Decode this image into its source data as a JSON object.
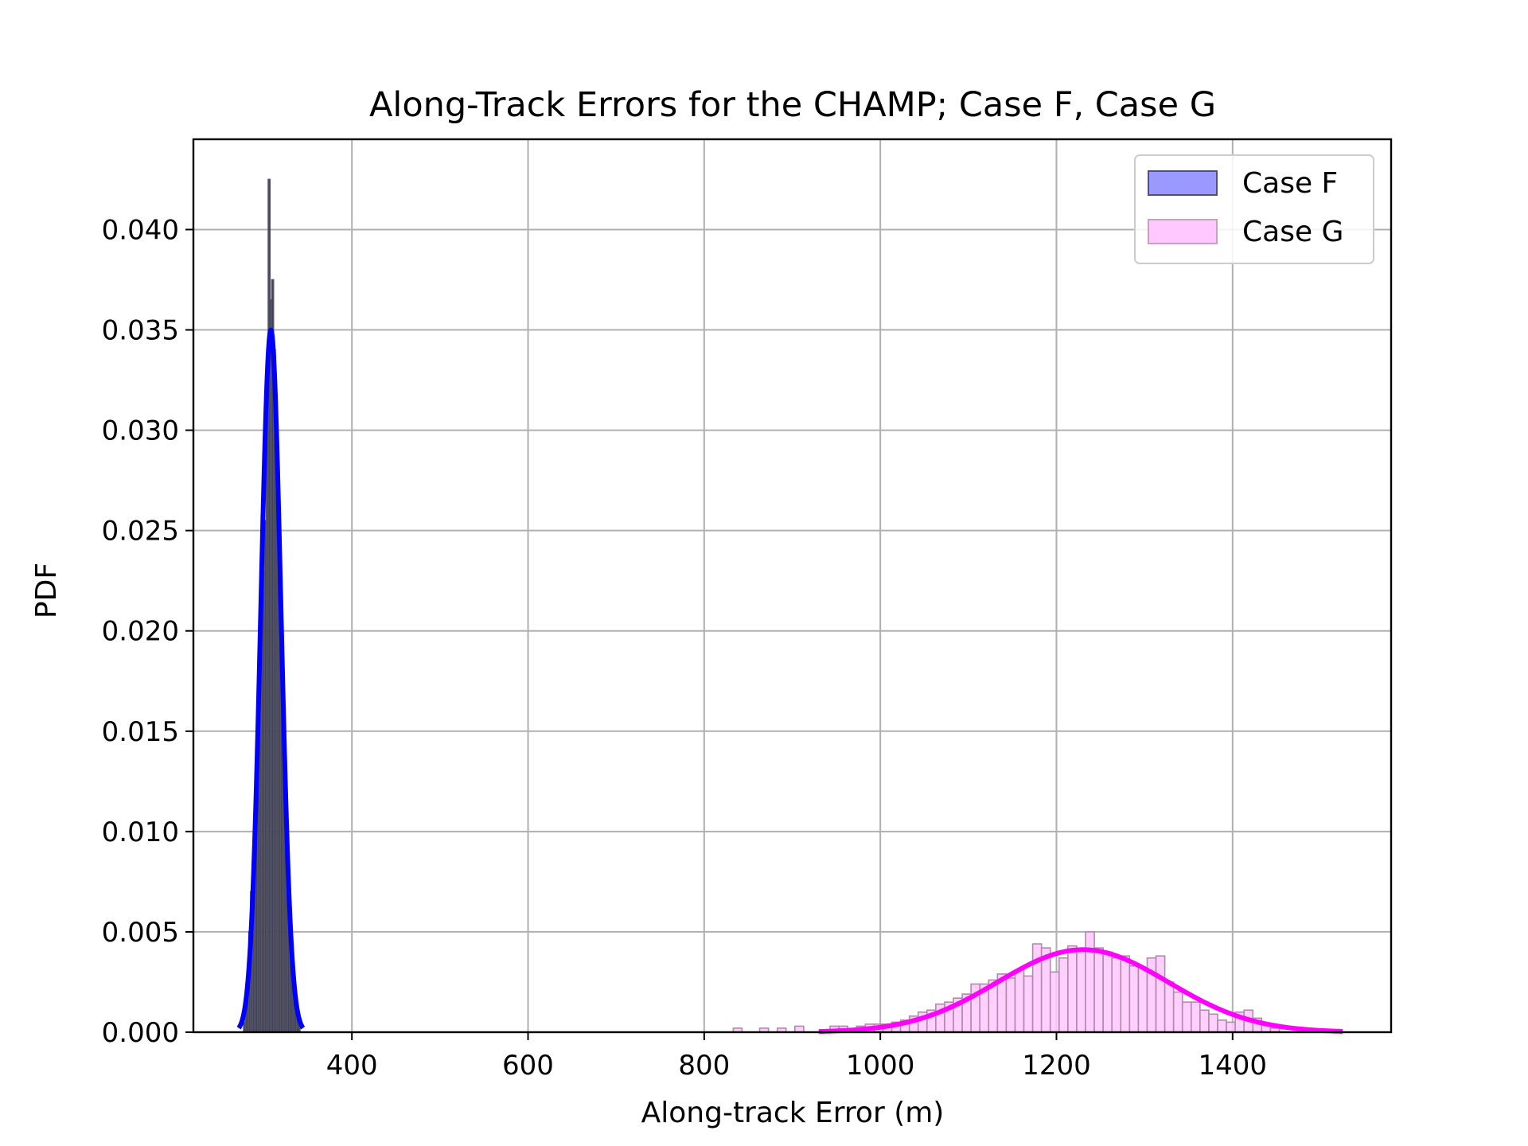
{
  "chart_data": {
    "type": "histogram",
    "title": "Along-Track Errors for the CHAMP; Case F, Case G",
    "xlabel": "Along-track Error (m)",
    "ylabel": "PDF",
    "xlim": [
      220,
      1580
    ],
    "ylim": [
      0,
      0.0445
    ],
    "xticks": [
      400,
      600,
      800,
      1000,
      1200,
      1400
    ],
    "xtick_labels": [
      "400",
      "600",
      "800",
      "1000",
      "1200",
      "1400"
    ],
    "yticks": [
      0,
      0.005,
      0.01,
      0.015,
      0.02,
      0.025,
      0.03,
      0.035,
      0.04
    ],
    "ytick_labels": [
      "0.000",
      "0.005",
      "0.010",
      "0.015",
      "0.020",
      "0.025",
      "0.030",
      "0.035",
      "0.040"
    ],
    "grid": true,
    "legend_position": "top-right",
    "series": [
      {
        "name": "Case F",
        "fill_color": "#9999ff",
        "hist_color": "#141432",
        "edge_color": "#555566",
        "curve_color": "#0000ff",
        "bin_width": 2,
        "bins": [
          [
            278,
            0.0005
          ],
          [
            280,
            0.0015
          ],
          [
            282,
            0.003
          ],
          [
            284,
            0.005
          ],
          [
            286,
            0.007
          ],
          [
            288,
            0.0085
          ],
          [
            290,
            0.011
          ],
          [
            292,
            0.013
          ],
          [
            294,
            0.015
          ],
          [
            296,
            0.018
          ],
          [
            298,
            0.0258
          ],
          [
            300,
            0.023
          ],
          [
            302,
            0.0255
          ],
          [
            304,
            0.03
          ],
          [
            306,
            0.0425
          ],
          [
            308,
            0.0365
          ],
          [
            310,
            0.0375
          ],
          [
            312,
            0.034
          ],
          [
            314,
            0.0318
          ],
          [
            316,
            0.026
          ],
          [
            318,
            0.022
          ],
          [
            320,
            0.0178
          ],
          [
            322,
            0.016
          ],
          [
            324,
            0.012
          ],
          [
            326,
            0.0085
          ],
          [
            328,
            0.0075
          ],
          [
            330,
            0.005
          ],
          [
            332,
            0.004
          ],
          [
            334,
            0.003
          ],
          [
            336,
            0.0015
          ],
          [
            338,
            0.001
          ],
          [
            340,
            0.0005
          ]
        ],
        "fit": {
          "mean": 308,
          "std": 11.4
        }
      },
      {
        "name": "Case G",
        "fill_color": "#ffc8ff",
        "hist_color": "#ffc8ff",
        "edge_color": "#b08aa8",
        "curve_color": "#ff00ff",
        "bin_width": 10,
        "bins": [
          [
            838,
            0.0002
          ],
          [
            868,
            0.0002
          ],
          [
            888,
            0.0002
          ],
          [
            908,
            0.0003
          ],
          [
            948,
            0.0003
          ],
          [
            958,
            0.0003
          ],
          [
            978,
            0.0003
          ],
          [
            988,
            0.0004
          ],
          [
            998,
            0.0004
          ],
          [
            1008,
            0.0004
          ],
          [
            1018,
            0.0005
          ],
          [
            1028,
            0.0006
          ],
          [
            1038,
            0.0008
          ],
          [
            1048,
            0.001
          ],
          [
            1058,
            0.0011
          ],
          [
            1068,
            0.0014
          ],
          [
            1078,
            0.0015
          ],
          [
            1088,
            0.0017
          ],
          [
            1098,
            0.0019
          ],
          [
            1108,
            0.0024
          ],
          [
            1118,
            0.0024
          ],
          [
            1128,
            0.0026
          ],
          [
            1138,
            0.0029
          ],
          [
            1148,
            0.0027
          ],
          [
            1158,
            0.0031
          ],
          [
            1168,
            0.0028
          ],
          [
            1178,
            0.0044
          ],
          [
            1188,
            0.0042
          ],
          [
            1198,
            0.003
          ],
          [
            1208,
            0.0037
          ],
          [
            1218,
            0.0043
          ],
          [
            1228,
            0.0041
          ],
          [
            1238,
            0.005
          ],
          [
            1248,
            0.0042
          ],
          [
            1258,
            0.004
          ],
          [
            1268,
            0.0037
          ],
          [
            1278,
            0.0038
          ],
          [
            1288,
            0.0033
          ],
          [
            1298,
            0.0032
          ],
          [
            1308,
            0.0037
          ],
          [
            1318,
            0.0038
          ],
          [
            1328,
            0.0025
          ],
          [
            1338,
            0.002
          ],
          [
            1348,
            0.0015
          ],
          [
            1358,
            0.0015
          ],
          [
            1368,
            0.0011
          ],
          [
            1378,
            0.0009
          ],
          [
            1388,
            0.0006
          ],
          [
            1398,
            0.0005
          ],
          [
            1408,
            0.001
          ],
          [
            1418,
            0.0011
          ],
          [
            1428,
            0.0007
          ],
          [
            1438,
            0.0004
          ],
          [
            1448,
            0.0002
          ]
        ],
        "fit": {
          "mean": 1230,
          "std": 97,
          "xmin": 930,
          "xmax": 1525
        }
      }
    ]
  }
}
